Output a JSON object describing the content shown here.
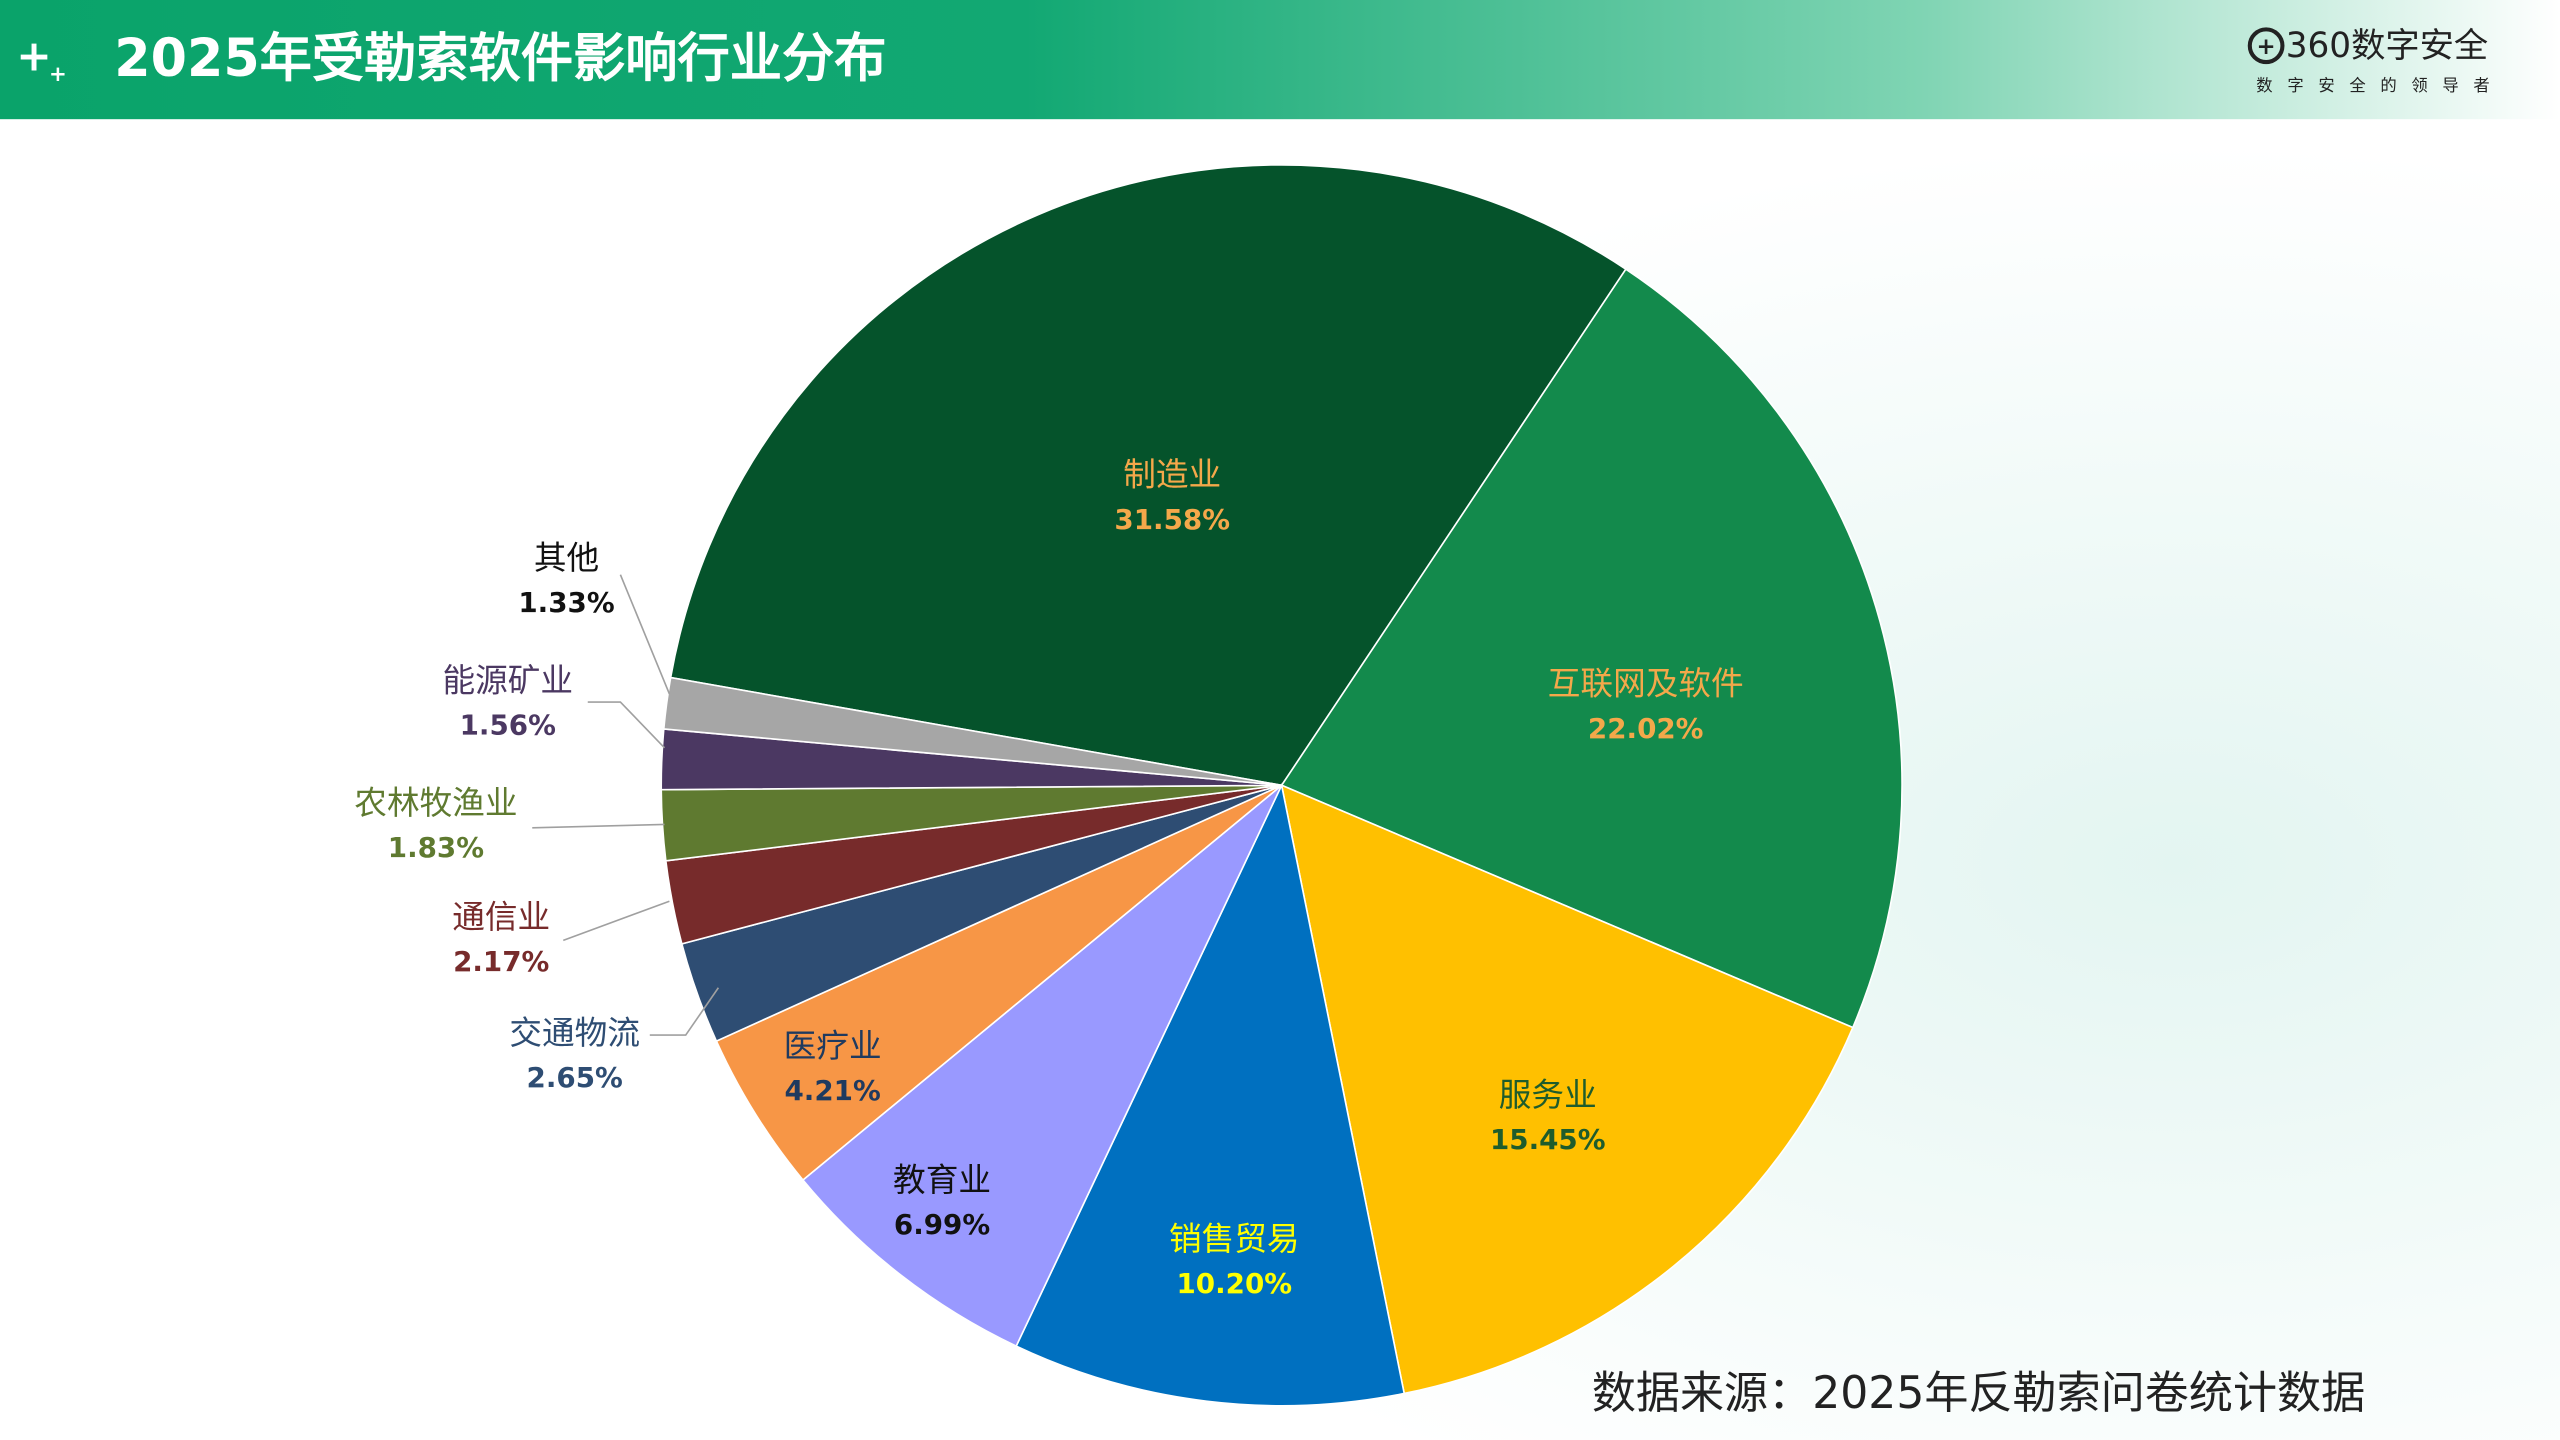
{
  "chart_data": {
    "type": "pie",
    "title": "2025年受勒索软件影响行业分布",
    "categories": [
      "制造业",
      "互联网及软件",
      "服务业",
      "销售贸易",
      "教育业",
      "医疗业",
      "交通物流",
      "通信业",
      "农林牧渔业",
      "能源矿业",
      "其他"
    ],
    "values": [
      31.58,
      22.02,
      15.45,
      10.2,
      6.99,
      4.21,
      2.65,
      2.17,
      1.83,
      1.56,
      1.33
    ],
    "value_labels": [
      "31.58%",
      "22.02%",
      "15.45%",
      "10.20%",
      "6.99%",
      "4.21%",
      "2.65%",
      "2.17%",
      "1.83%",
      "1.56%",
      "1.33%"
    ],
    "colors": [
      "#05532b",
      "#138a4c",
      "#ffc000",
      "#0070c0",
      "#9999ff",
      "#f79646",
      "#2e4d73",
      "#772b2b",
      "#5f7a30",
      "#4b3862",
      "#a6a6a6"
    ],
    "label_colors": [
      "#f4a84a",
      "#f4a84a",
      "#1e5c2c",
      "#ffff00",
      "#111111",
      "#1f3a5f",
      "#2e4d73",
      "#772b2b",
      "#5f7a30",
      "#4b3862",
      "#111111"
    ],
    "source": "数据来源：2025年反勒索问卷统计数据"
  },
  "brand": {
    "name": "360数字安全",
    "slogan": "数字安全的领导者"
  }
}
